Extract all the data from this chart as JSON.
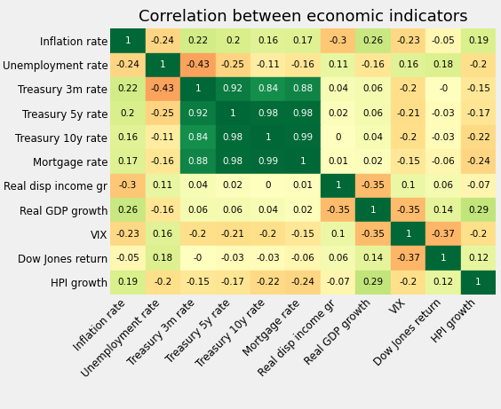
{
  "title": "Correlation between economic indicators",
  "labels": [
    "Inflation rate",
    "Unemployment rate",
    "Treasury 3m rate",
    "Treasury 5y rate",
    "Treasury 10y rate",
    "Mortgage rate",
    "Real disp income gr",
    "Real GDP growth",
    "VIX",
    "Dow Jones return",
    "HPI growth"
  ],
  "matrix": [
    [
      1,
      -0.24,
      0.22,
      0.2,
      0.16,
      0.17,
      -0.3,
      0.26,
      -0.23,
      -0.05,
      0.19
    ],
    [
      -0.24,
      1,
      -0.43,
      -0.25,
      -0.11,
      -0.16,
      0.11,
      -0.16,
      0.16,
      0.18,
      -0.2
    ],
    [
      0.22,
      -0.43,
      1,
      0.92,
      0.84,
      0.88,
      0.04,
      0.06,
      -0.2,
      -0.0,
      -0.15
    ],
    [
      0.2,
      -0.25,
      0.92,
      1,
      0.98,
      0.98,
      0.02,
      0.06,
      -0.21,
      -0.03,
      -0.17
    ],
    [
      0.16,
      -0.11,
      0.84,
      0.98,
      1,
      0.99,
      0.0,
      0.04,
      -0.2,
      -0.03,
      -0.22
    ],
    [
      0.17,
      -0.16,
      0.88,
      0.98,
      0.99,
      1,
      0.01,
      0.02,
      -0.15,
      -0.06,
      -0.24
    ],
    [
      -0.3,
      0.11,
      0.04,
      0.02,
      0.0,
      0.01,
      1,
      -0.35,
      0.1,
      0.06,
      -0.07
    ],
    [
      0.26,
      -0.16,
      0.06,
      0.06,
      0.04,
      0.02,
      -0.35,
      1,
      -0.35,
      0.14,
      0.29
    ],
    [
      -0.23,
      0.16,
      -0.2,
      -0.21,
      -0.2,
      -0.15,
      0.1,
      -0.35,
      1,
      -0.37,
      -0.2
    ],
    [
      -0.05,
      0.18,
      -0.0,
      -0.03,
      -0.03,
      -0.06,
      0.06,
      0.14,
      -0.37,
      1,
      0.12
    ],
    [
      0.19,
      -0.2,
      -0.15,
      -0.17,
      -0.22,
      -0.24,
      -0.07,
      0.29,
      -0.2,
      0.12,
      1
    ]
  ],
  "cell_text": [
    [
      "1",
      "-0.24",
      "0.22",
      "0.2",
      "0.16",
      "0.17",
      "-0.3",
      "0.26",
      "-0.23",
      "-0.05",
      "0.19"
    ],
    [
      "-0.24",
      "1",
      "-0.43",
      "-0.25",
      "-0.11",
      "-0.16",
      "0.11",
      "-0.16",
      "0.16",
      "0.18",
      "-0.2"
    ],
    [
      "0.22",
      "-0.43",
      "1",
      "0.92",
      "0.84",
      "0.88",
      "0.04",
      "0.06",
      "-0.2",
      "-0",
      "-0.15"
    ],
    [
      "0.2",
      "-0.25",
      "0.92",
      "1",
      "0.98",
      "0.98",
      "0.02",
      "0.06",
      "-0.21",
      "-0.03",
      "-0.17"
    ],
    [
      "0.16",
      "-0.11",
      "0.84",
      "0.98",
      "1",
      "0.99",
      "0",
      "0.04",
      "-0.2",
      "-0.03",
      "-0.22"
    ],
    [
      "0.17",
      "-0.16",
      "0.88",
      "0.98",
      "0.99",
      "1",
      "0.01",
      "0.02",
      "-0.15",
      "-0.06",
      "-0.24"
    ],
    [
      "-0.3",
      "0.11",
      "0.04",
      "0.02",
      "0",
      "0.01",
      "1",
      "-0.35",
      "0.1",
      "0.06",
      "-0.07"
    ],
    [
      "0.26",
      "-0.16",
      "0.06",
      "0.06",
      "0.04",
      "0.02",
      "-0.35",
      "1",
      "-0.35",
      "0.14",
      "0.29"
    ],
    [
      "-0.23",
      "0.16",
      "-0.2",
      "-0.21",
      "-0.2",
      "-0.15",
      "0.1",
      "-0.35",
      "1",
      "-0.37",
      "-0.2"
    ],
    [
      "-0.05",
      "0.18",
      "-0",
      "-0.03",
      "-0.03",
      "-0.06",
      "0.06",
      "0.14",
      "-0.37",
      "1",
      "0.12"
    ],
    [
      "0.19",
      "-0.2",
      "-0.15",
      "-0.17",
      "-0.22",
      "-0.24",
      "-0.07",
      "0.29",
      "-0.2",
      "0.12",
      "1"
    ]
  ],
  "vmin": -1,
  "vmax": 1,
  "title_fontsize": 13,
  "label_fontsize": 8.5,
  "cell_fontsize": 7.5,
  "background_color": "#f0f0f0"
}
